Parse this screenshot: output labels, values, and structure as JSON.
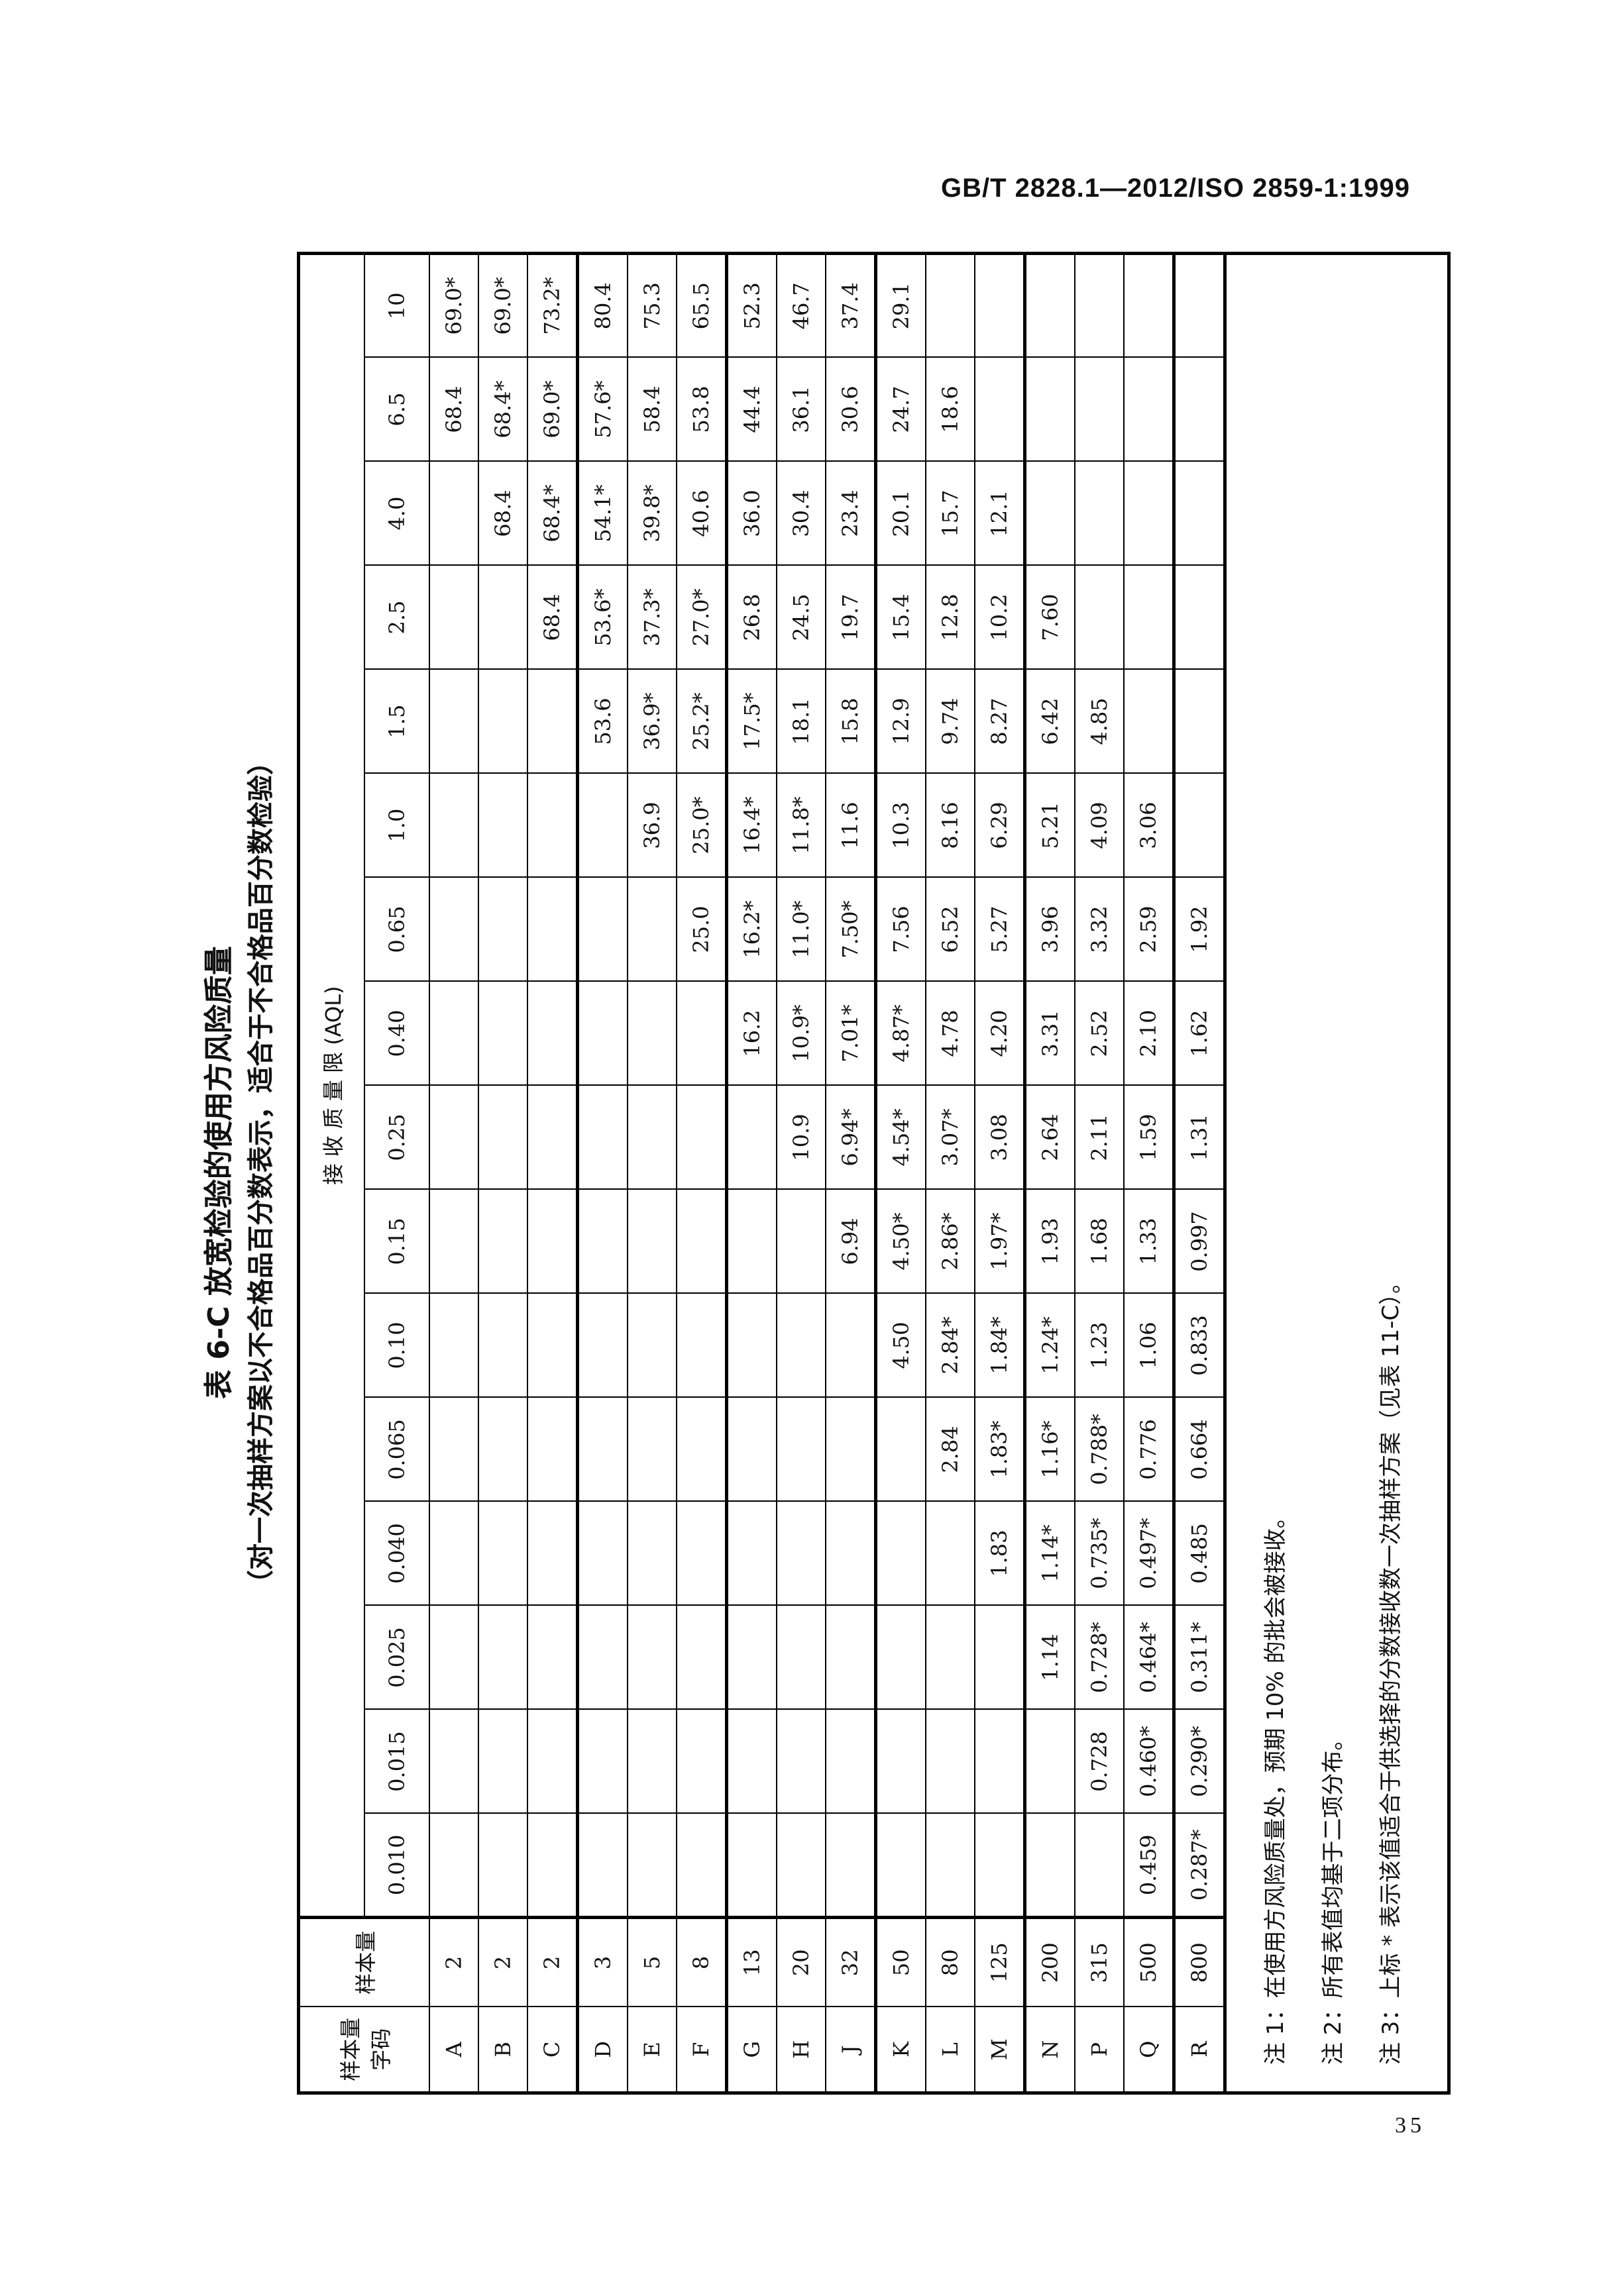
{
  "header": {
    "standard": "GB/T 2828.1—2012/ISO 2859-1:1999"
  },
  "page_number": "35",
  "table": {
    "title": "表 6-C  放宽检验的使用方风险质量",
    "subtitle": "（对一次抽样方案以不合格品百分数表示，适合于不合格品百分数检验）",
    "col_code": "样本量字码",
    "col_size": "样本量",
    "aql_header": "接 收 质 量 限 (AQL)",
    "aql": [
      "0.010",
      "0.015",
      "0.025",
      "0.040",
      "0.065",
      "0.10",
      "0.15",
      "0.25",
      "0.40",
      "0.65",
      "1.0",
      "1.5",
      "2.5",
      "4.0",
      "6.5",
      "10"
    ],
    "rows": [
      {
        "code": "A",
        "size": "2",
        "values": [
          "",
          "",
          "",
          "",
          "",
          "",
          "",
          "",
          "",
          "",
          "",
          "",
          "",
          "",
          "68.4",
          "69.0*"
        ]
      },
      {
        "code": "B",
        "size": "2",
        "values": [
          "",
          "",
          "",
          "",
          "",
          "",
          "",
          "",
          "",
          "",
          "",
          "",
          "",
          "68.4",
          "68.4*",
          "69.0*"
        ]
      },
      {
        "code": "C",
        "size": "2",
        "values": [
          "",
          "",
          "",
          "",
          "",
          "",
          "",
          "",
          "",
          "",
          "",
          "",
          "68.4",
          "68.4*",
          "69.0*",
          "73.2*"
        ]
      },
      {
        "code": "D",
        "size": "3",
        "values": [
          "",
          "",
          "",
          "",
          "",
          "",
          "",
          "",
          "",
          "",
          "",
          "53.6",
          "53.6*",
          "54.1*",
          "57.6*",
          "80.4"
        ]
      },
      {
        "code": "E",
        "size": "5",
        "values": [
          "",
          "",
          "",
          "",
          "",
          "",
          "",
          "",
          "",
          "",
          "36.9",
          "36.9*",
          "37.3*",
          "39.8*",
          "58.4",
          "75.3"
        ]
      },
      {
        "code": "F",
        "size": "8",
        "values": [
          "",
          "",
          "",
          "",
          "",
          "",
          "",
          "",
          "",
          "25.0",
          "25.0*",
          "25.2*",
          "27.0*",
          "40.6",
          "53.8",
          "65.5"
        ]
      },
      {
        "code": "G",
        "size": "13",
        "values": [
          "",
          "",
          "",
          "",
          "",
          "",
          "",
          "",
          "16.2",
          "16.2*",
          "16.4*",
          "17.5*",
          "26.8",
          "36.0",
          "44.4",
          "52.3"
        ]
      },
      {
        "code": "H",
        "size": "20",
        "values": [
          "",
          "",
          "",
          "",
          "",
          "",
          "",
          "10.9",
          "10.9*",
          "11.0*",
          "11.8*",
          "18.1",
          "24.5",
          "30.4",
          "36.1",
          "46.7"
        ]
      },
      {
        "code": "J",
        "size": "32",
        "values": [
          "",
          "",
          "",
          "",
          "",
          "",
          "6.94",
          "6.94*",
          "7.01*",
          "7.50*",
          "11.6",
          "15.8",
          "19.7",
          "23.4",
          "30.6",
          "37.4"
        ]
      },
      {
        "code": "K",
        "size": "50",
        "values": [
          "",
          "",
          "",
          "",
          "",
          "4.50",
          "4.50*",
          "4.54*",
          "4.87*",
          "7.56",
          "10.3",
          "12.9",
          "15.4",
          "20.1",
          "24.7",
          "29.1"
        ]
      },
      {
        "code": "L",
        "size": "80",
        "values": [
          "",
          "",
          "",
          "",
          "2.84",
          "2.84*",
          "2.86*",
          "3.07*",
          "4.78",
          "6.52",
          "8.16",
          "9.74",
          "12.8",
          "15.7",
          "18.6",
          ""
        ]
      },
      {
        "code": "M",
        "size": "125",
        "values": [
          "",
          "",
          "",
          "1.83",
          "1.83*",
          "1.84*",
          "1.97*",
          "3.08",
          "4.20",
          "5.27",
          "6.29",
          "8.27",
          "10.2",
          "12.1",
          "",
          ""
        ]
      },
      {
        "code": "N",
        "size": "200",
        "values": [
          "",
          "",
          "1.14",
          "1.14*",
          "1.16*",
          "1.24*",
          "1.93",
          "2.64",
          "3.31",
          "3.96",
          "5.21",
          "6.42",
          "7.60",
          "",
          "",
          ""
        ]
      },
      {
        "code": "P",
        "size": "315",
        "values": [
          "",
          "0.728",
          "0.728*",
          "0.735*",
          "0.788*",
          "1.23",
          "1.68",
          "2.11",
          "2.52",
          "3.32",
          "4.09",
          "4.85",
          "",
          "",
          "",
          ""
        ]
      },
      {
        "code": "Q",
        "size": "500",
        "values": [
          "0.459",
          "0.460*",
          "0.464*",
          "0.497*",
          "0.776",
          "1.06",
          "1.33",
          "1.59",
          "2.10",
          "2.59",
          "3.06",
          "",
          "",
          "",
          "",
          ""
        ]
      },
      {
        "code": "R",
        "size": "800",
        "values": [
          "0.287*",
          "0.290*",
          "0.311*",
          "0.485",
          "0.664",
          "0.833",
          "0.997",
          "1.31",
          "1.62",
          "1.92",
          "",
          "",
          "",
          "",
          "",
          ""
        ]
      }
    ],
    "notes": [
      "注 1：在使用方风险质量处，预期 10% 的批会被接收。",
      "注 2：所有表值均基于二项分布。",
      "注 3：上标 * 表示该值适合于供选择的分数接收数一次抽样方案（见表 11-C）。"
    ]
  }
}
